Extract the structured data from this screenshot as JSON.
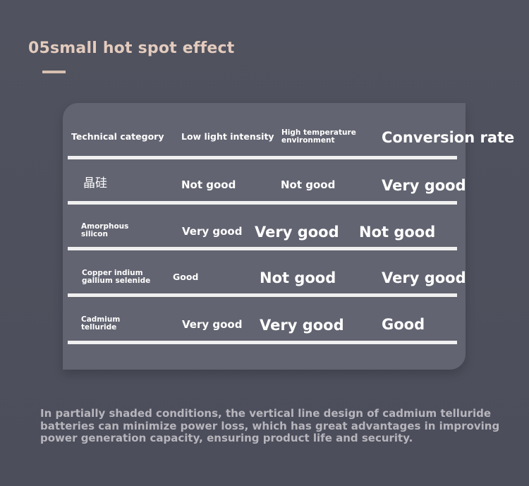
{
  "title": "05small hot spot effect",
  "table": {
    "header": {
      "col1": "Technical category",
      "col2": "Low light intensity",
      "col3_line1": "High temperature",
      "col3_line2": "environment",
      "col4": "Conversion rate"
    },
    "rows": [
      {
        "category_line1": "晶硅",
        "category_line2": "",
        "low_light": "Not good",
        "high_temp": "Not good",
        "conversion": "Very good"
      },
      {
        "category_line1": "Amorphous",
        "category_line2": "silicon",
        "low_light": "Very good",
        "high_temp": "Very good",
        "conversion": "Not good"
      },
      {
        "category_line1": "Copper indium",
        "category_line2": "gallium selenide",
        "low_light": "Good",
        "high_temp": "Not good",
        "conversion": "Very good"
      },
      {
        "category_line1": "Cadmium",
        "category_line2": "telluride",
        "low_light": "Very good",
        "high_temp": "Very good",
        "conversion": "Good"
      }
    ]
  },
  "footer": {
    "text": "In partially shaded conditions, the vertical line design of cadmium telluride batteries can minimize power loss, which has great advantages in improving power generation capacity, ensuring product life and security."
  },
  "colors": {
    "background": "#4e505d",
    "panel": "#626471",
    "title": "#e3cbbd",
    "footer_text": "#b7b5bc",
    "divider": "#f0f0f0"
  }
}
